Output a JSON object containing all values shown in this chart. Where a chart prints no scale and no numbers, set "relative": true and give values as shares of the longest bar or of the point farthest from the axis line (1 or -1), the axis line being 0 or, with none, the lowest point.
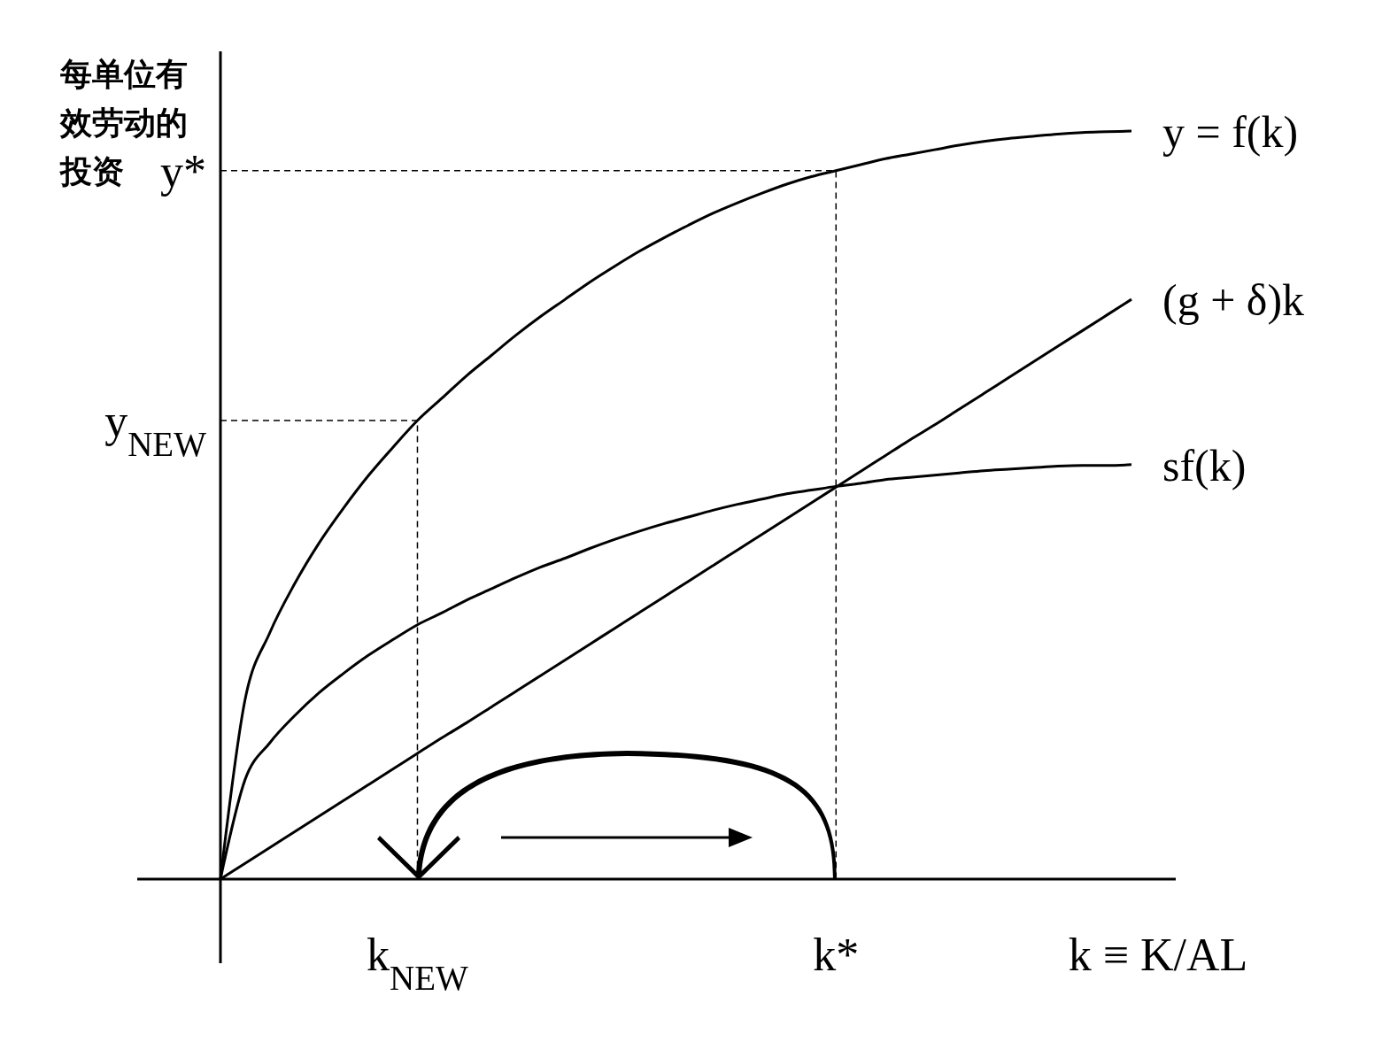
{
  "chart_data": {
    "type": "line",
    "relative": true,
    "ylabel": "每单位有效劳动的投资",
    "xlabel": "k ≡ K/AL",
    "legend": false,
    "categories": [
      null,
      null,
      null,
      null,
      null,
      null,
      null,
      null,
      "k$_{NEW}$",
      null,
      null,
      null,
      null,
      null,
      null,
      null,
      null,
      null,
      null,
      null,
      null,
      null,
      null,
      null,
      null,
      "k*",
      null,
      null,
      null,
      null,
      null,
      null,
      null,
      null,
      null,
      null,
      null,
      null
    ],
    "series": [
      {
        "name": "y = f(k)",
        "color": "#000000",
        "values": [
          0,
          0.24,
          0.329,
          0.394,
          0.449,
          0.496,
          0.539,
          0.577,
          0.613,
          0.643,
          0.673,
          0.7,
          0.727,
          0.752,
          0.775,
          0.798,
          0.819,
          0.839,
          0.857,
          0.874,
          0.89,
          0.904,
          0.917,
          0.929,
          0.939,
          0.947,
          0.955,
          0.963,
          0.969,
          0.975,
          0.981,
          0.986,
          0.99,
          0.993,
          0.996,
          0.998,
          0.999,
          1
        ]
      },
      {
        "name": "(g + δ)k",
        "color": "#000000",
        "values": [
          0,
          0.021,
          0.042,
          0.063,
          0.084,
          0.105,
          0.126,
          0.147,
          0.168,
          0.189,
          0.209,
          0.23,
          0.251,
          0.272,
          0.293,
          0.314,
          0.335,
          0.356,
          0.377,
          0.398,
          0.419,
          0.44,
          0.461,
          0.482,
          0.503,
          0.524,
          0.545,
          0.566,
          0.587,
          0.607,
          0.628,
          0.649,
          0.67,
          0.691,
          0.712,
          0.733,
          0.754,
          0.775
        ]
      },
      {
        "name": "sf(k)",
        "color": "#000000",
        "values": [
          0,
          0.133,
          0.182,
          0.218,
          0.249,
          0.275,
          0.299,
          0.32,
          0.34,
          0.356,
          0.373,
          0.388,
          0.403,
          0.417,
          0.429,
          0.442,
          0.454,
          0.465,
          0.475,
          0.484,
          0.493,
          0.501,
          0.508,
          0.515,
          0.52,
          0.525,
          0.529,
          0.534,
          0.537,
          0.54,
          0.543,
          0.546,
          0.548,
          0.55,
          0.552,
          0.553,
          0.553,
          0.554
        ]
      }
    ],
    "annotations": [
      "y*",
      "y$_{NEW}$"
    ]
  }
}
